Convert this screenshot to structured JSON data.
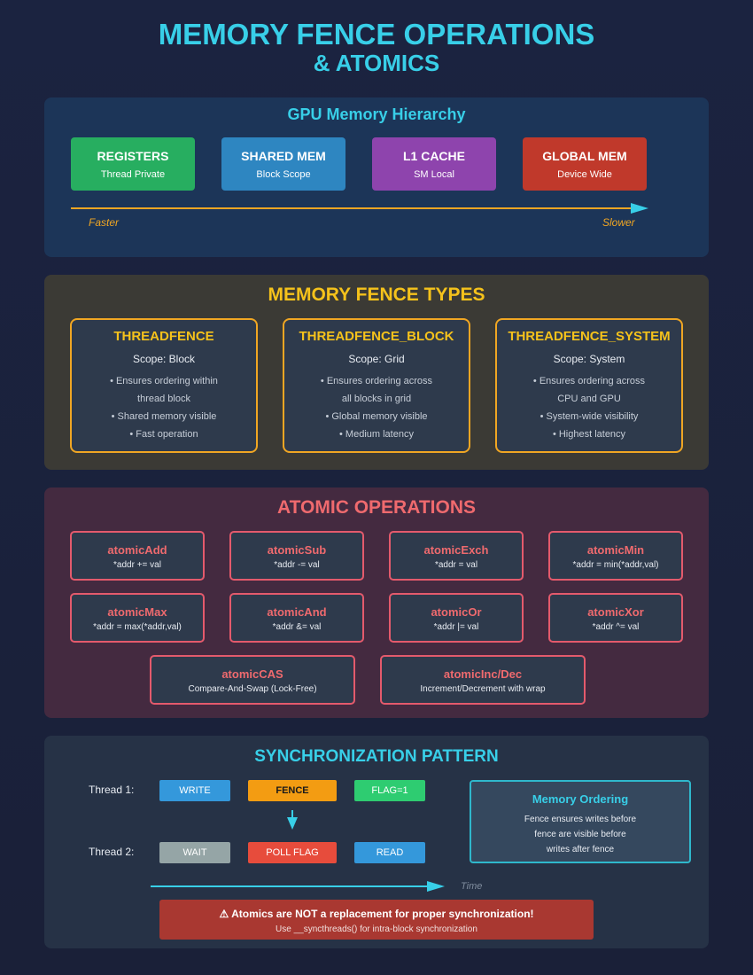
{
  "header": {
    "title_line1": "MEMORY FENCE OPERATIONS",
    "title_line2": "& ATOMICS"
  },
  "hierarchy": {
    "title": "GPU Memory Hierarchy",
    "levels": [
      {
        "name": "REGISTERS",
        "scope": "Thread Private",
        "color": "#27ae60"
      },
      {
        "name": "SHARED MEM",
        "scope": "Block Scope",
        "color": "#2e86c1"
      },
      {
        "name": "L1 CACHE",
        "scope": "SM Local",
        "color": "#8e44ad"
      },
      {
        "name": "GLOBAL MEM",
        "scope": "Device Wide",
        "color": "#c0392b"
      }
    ],
    "faster_label": "Faster",
    "slower_label": "Slower"
  },
  "fence_types": {
    "title": "MEMORY FENCE TYPES",
    "cards": [
      {
        "name": "THREADFENCE",
        "scope": "Scope: Block",
        "bullets": [
          "• Ensures ordering within",
          "thread block",
          "• Shared memory visible",
          "• Fast operation"
        ]
      },
      {
        "name": "THREADFENCE_BLOCK",
        "scope": "Scope: Grid",
        "bullets": [
          "• Ensures ordering across",
          "all blocks in grid",
          "• Global memory visible",
          "• Medium latency"
        ]
      },
      {
        "name": "THREADFENCE_SYSTEM",
        "scope": "Scope: System",
        "bullets": [
          "• Ensures ordering across",
          "CPU and GPU",
          "• System-wide visibility",
          "• Highest latency"
        ]
      }
    ]
  },
  "atomics": {
    "title": "ATOMIC OPERATIONS",
    "ops": [
      {
        "name": "atomicAdd",
        "expr": "*addr += val"
      },
      {
        "name": "atomicSub",
        "expr": "*addr -= val"
      },
      {
        "name": "atomicExch",
        "expr": "*addr = val"
      },
      {
        "name": "atomicMin",
        "expr": "*addr = min(*addr,val)"
      },
      {
        "name": "atomicMax",
        "expr": "*addr = max(*addr,val)"
      },
      {
        "name": "atomicAnd",
        "expr": "*addr &= val"
      },
      {
        "name": "atomicOr",
        "expr": "*addr |= val"
      },
      {
        "name": "atomicXor",
        "expr": "*addr ^= val"
      },
      {
        "name": "atomicCAS",
        "expr": "Compare-And-Swap (Lock-Free)"
      },
      {
        "name": "atomicInc/Dec",
        "expr": "Increment/Decrement with wrap"
      }
    ]
  },
  "sync": {
    "title": "SYNCHRONIZATION PATTERN",
    "thread1_label": "Thread 1:",
    "thread2_label": "Thread 2:",
    "thread1_steps": [
      "WRITE",
      "FENCE",
      "FLAG=1"
    ],
    "thread2_steps": [
      "WAIT",
      "POLL FLAG",
      "READ"
    ],
    "time_label": "Time",
    "ordering": {
      "title": "Memory Ordering",
      "lines": [
        "Fence ensures writes before",
        "fence are visible before",
        "writes after fence"
      ]
    },
    "warning": {
      "title": "⚠ Atomics are NOT a replacement for proper synchronization!",
      "subtitle": "Use __syncthreads() for intra-block synchronization"
    }
  }
}
